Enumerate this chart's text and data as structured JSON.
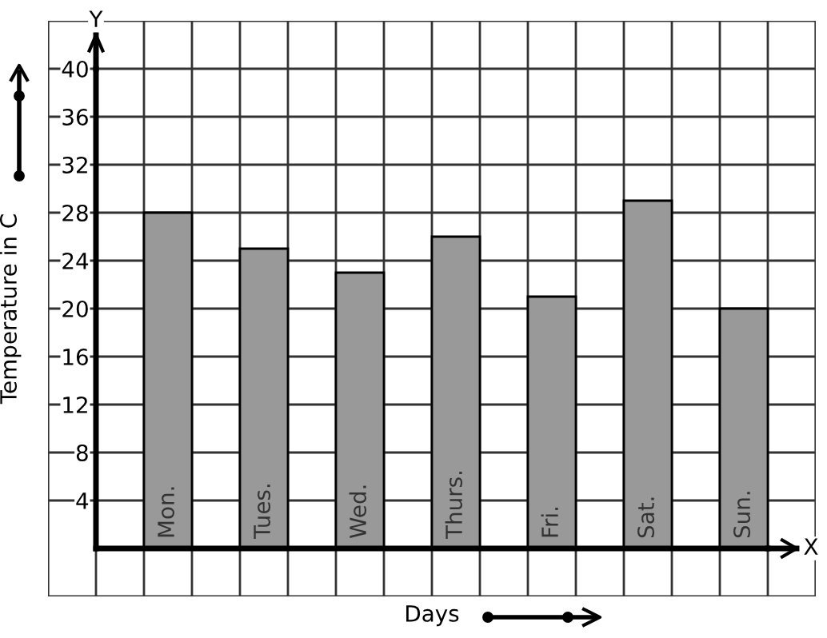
{
  "chart_data": {
    "type": "bar",
    "xlabel": "Days",
    "ylabel": "Temperature in C",
    "annotations": [
      "Y",
      "X"
    ],
    "categories": [
      "Mon.",
      "Tues.",
      "Wed.",
      "Thurs.",
      "Fri.",
      "Sat.",
      "Sun."
    ],
    "values": [
      28,
      25,
      23,
      26,
      21,
      29,
      20
    ],
    "color": "#999999",
    "ylim": [
      -4,
      44
    ],
    "yticks": [
      4,
      8,
      12,
      16,
      20,
      24,
      28,
      32,
      36,
      40
    ],
    "grid": true,
    "legend": false
  }
}
